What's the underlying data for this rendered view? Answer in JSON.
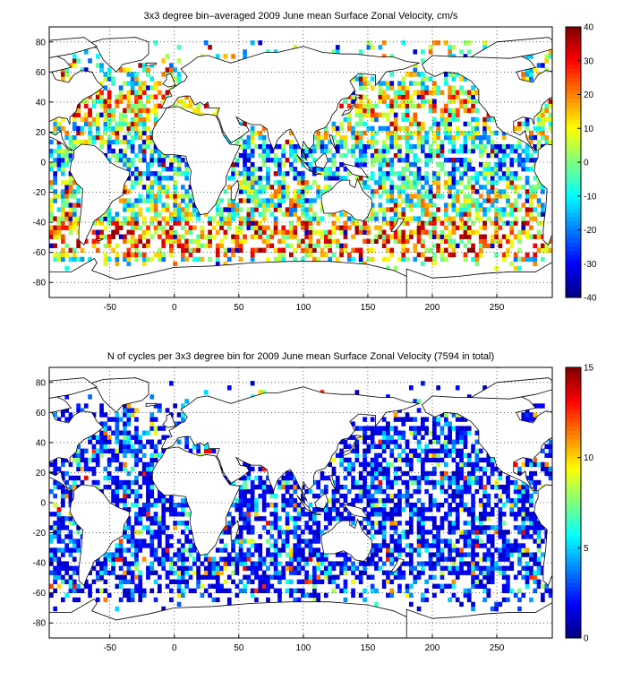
{
  "chart_data": [
    {
      "type": "heatmap",
      "title": "3x3 degree bin–averaged 2009 June mean Surface Zonal Velocity, cm/s",
      "xlabel": "",
      "ylabel": "",
      "xlim": [
        -97,
        293
      ],
      "ylim": [
        -90,
        90
      ],
      "x_ticks": [
        -50,
        0,
        50,
        100,
        150,
        200,
        250
      ],
      "y_ticks": [
        80,
        60,
        40,
        20,
        0,
        -20,
        -40,
        -60,
        -80
      ],
      "grid": "dotted",
      "colorbar": {
        "min": -40,
        "max": 40,
        "ticks": [
          40,
          30,
          20,
          10,
          0,
          -10,
          -20,
          -30,
          -40
        ],
        "colormap": "jet"
      },
      "bin_size_deg": 3,
      "value_kind": "velocity"
    },
    {
      "type": "heatmap",
      "title": "N of cycles per 3x3 degree bin for 2009 June mean Surface Zonal Velocity (7594 in total)",
      "xlabel": "",
      "ylabel": "",
      "xlim": [
        -97,
        293
      ],
      "ylim": [
        -90,
        90
      ],
      "x_ticks": [
        -50,
        0,
        50,
        100,
        150,
        200,
        250
      ],
      "y_ticks": [
        80,
        60,
        40,
        20,
        0,
        -20,
        -40,
        -60,
        -80
      ],
      "grid": "dotted",
      "colorbar": {
        "min": 0,
        "max": 15,
        "ticks": [
          15,
          10,
          5,
          0
        ],
        "colormap": "jet"
      },
      "bin_size_deg": 3,
      "total_cycles": 7594,
      "value_kind": "count"
    }
  ],
  "colors": {
    "axis": "#000000",
    "coastline": "#000000",
    "background": "#ffffff"
  }
}
